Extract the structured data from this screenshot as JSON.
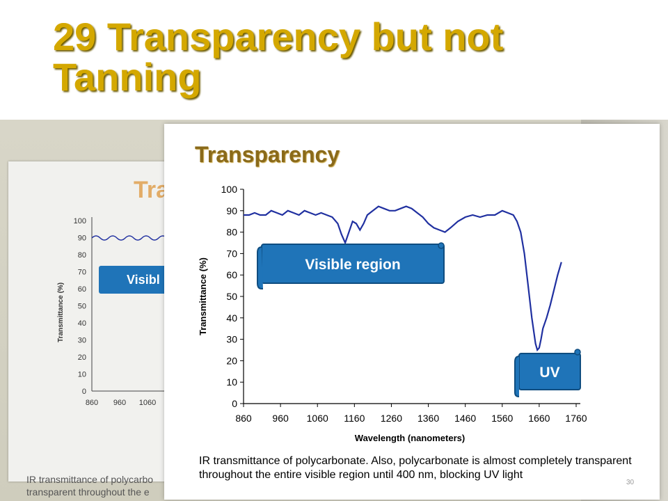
{
  "slide": {
    "title": "29 Transparency but not Tanning",
    "page_number": "30"
  },
  "background_poster": {
    "title_fragment": "Tra",
    "visible_fragment": "Visibl",
    "caption_fragment": "IR transmittance of polycarbo\ntransparent throughout the e",
    "yticks": [
      0,
      10,
      20,
      30,
      40,
      50,
      60,
      70,
      80,
      90,
      100
    ],
    "xticks": [
      860,
      960,
      1060
    ],
    "ylabel": "Transmittance (%)"
  },
  "inner_slide": {
    "title": "Transparency",
    "caption": "IR transmittance of polycarbonate. Also, polycarbonate is almost completely transparent throughout the entire visible region until 400 nm, blocking UV light"
  },
  "colors": {
    "title_gold": "#d4a800",
    "line_blue": "#2030a0",
    "label_blue": "#1f74b8"
  },
  "chart_data": {
    "type": "line",
    "title": "",
    "xlabel": "Wavelength (nanometers)",
    "ylabel": "Transmittance (%)",
    "xlim": [
      860,
      1760
    ],
    "ylim": [
      0,
      100
    ],
    "xticks": [
      860,
      960,
      1060,
      1160,
      1260,
      1360,
      1460,
      1560,
      1660,
      1760
    ],
    "yticks": [
      0,
      10,
      20,
      30,
      40,
      50,
      60,
      70,
      80,
      90,
      100
    ],
    "annotations": [
      {
        "text": "Visible region"
      },
      {
        "text": "UV"
      }
    ],
    "series": [
      {
        "x": [
          860,
          875,
          890,
          905,
          920,
          935,
          950,
          965,
          980,
          995,
          1010,
          1025,
          1040,
          1055,
          1070,
          1085,
          1100,
          1115,
          1125,
          1135,
          1145,
          1155,
          1165,
          1175,
          1185,
          1195,
          1210,
          1225,
          1240,
          1255,
          1270,
          1285,
          1300,
          1315,
          1330,
          1345,
          1360,
          1375,
          1390,
          1405,
          1420,
          1440,
          1460,
          1480,
          1500,
          1520,
          1540,
          1560,
          1575,
          1590,
          1600,
          1610,
          1620,
          1630,
          1640,
          1650,
          1655,
          1660,
          1665,
          1670,
          1680,
          1690,
          1700,
          1710,
          1720
        ],
        "y": [
          88,
          88,
          89,
          88,
          88,
          90,
          89,
          88,
          90,
          89,
          88,
          90,
          89,
          88,
          89,
          88,
          87,
          84,
          79,
          75,
          80,
          85,
          84,
          81,
          84,
          88,
          90,
          92,
          91,
          90,
          90,
          91,
          92,
          91,
          89,
          87,
          84,
          82,
          81,
          80,
          82,
          85,
          87,
          88,
          87,
          88,
          88,
          90,
          89,
          88,
          85,
          80,
          70,
          55,
          40,
          28,
          25,
          26,
          30,
          35,
          40,
          46,
          53,
          60,
          66
        ]
      }
    ]
  }
}
